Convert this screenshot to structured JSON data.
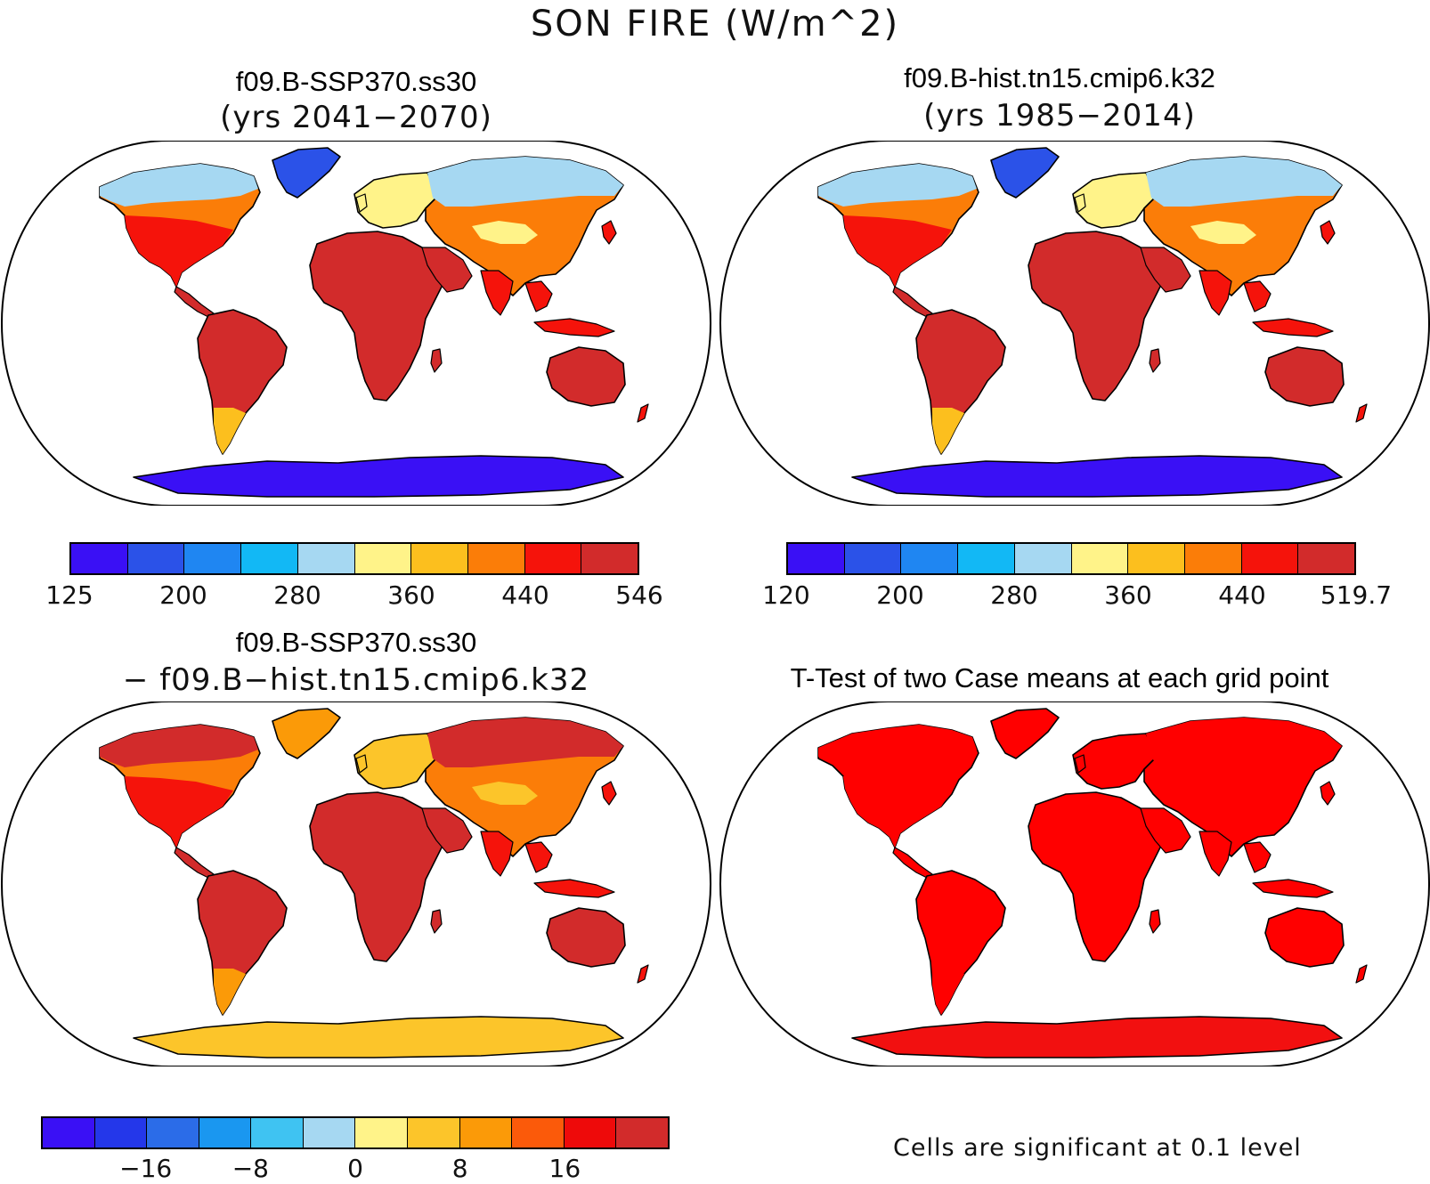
{
  "figure": {
    "title": "SON FIRE (W/m^2)"
  },
  "panels": [
    {
      "id": "future",
      "title_line1": "f09.B-SSP370.ss30",
      "title_line2": "(yrs 2041−2070)",
      "colorbar": {
        "colors": [
          "#3a10f5",
          "#2b52e8",
          "#1f86f2",
          "#12b8f5",
          "#a6d8f2",
          "#fff389",
          "#fcbf1e",
          "#fb7d08",
          "#f5130b",
          "#d22b2b"
        ],
        "tick_labels": [
          "125",
          "200",
          "280",
          "360",
          "440",
          "546"
        ]
      },
      "map_colors": {
        "land_main": "#d22b2b",
        "land_mid": "#f5130b",
        "land_warm": "#fb7d08",
        "land_cool": "#fcbf1e",
        "arctic": "#a6d8f2",
        "greenland": "#2b52e8",
        "antarctica": "#3a10f5",
        "pale": "#fff389"
      }
    },
    {
      "id": "historical",
      "title_line1": "f09.B-hist.tn15.cmip6.k32",
      "title_line2": "(yrs 1985−2014)",
      "colorbar": {
        "colors": [
          "#3a10f5",
          "#2b52e8",
          "#1f86f2",
          "#12b8f5",
          "#a6d8f2",
          "#fff389",
          "#fcbf1e",
          "#fb7d08",
          "#f5130b",
          "#d22b2b"
        ],
        "tick_labels": [
          "120",
          "200",
          "280",
          "360",
          "440",
          "519.7"
        ]
      },
      "map_colors": {
        "land_main": "#d22b2b",
        "land_mid": "#f5130b",
        "land_warm": "#fb7d08",
        "land_cool": "#fcbf1e",
        "arctic": "#a6d8f2",
        "greenland": "#2b52e8",
        "antarctica": "#3a10f5",
        "pale": "#fff389"
      }
    },
    {
      "id": "difference",
      "title_line1": "f09.B-SSP370.ss30",
      "title_line2": "− f09.B−hist.tn15.cmip6.k32",
      "colorbar": {
        "colors": [
          "#3a10f5",
          "#2437ea",
          "#2b6ce8",
          "#1a97f0",
          "#3fc3f2",
          "#a6d8f2",
          "#fff389",
          "#fcc52a",
          "#fb9a08",
          "#fb5a0a",
          "#ee0a0a",
          "#d22b2b"
        ],
        "tick_labels": [
          "−16",
          "−8",
          "0",
          "8",
          "16"
        ]
      },
      "map_colors": {
        "land_main": "#d22b2b",
        "land_mid": "#f5130b",
        "land_warm": "#fb7d08",
        "land_cool": "#fb9a08",
        "arctic": "#d22b2b",
        "greenland": "#fb9a08",
        "antarctica": "#fcc52a",
        "pale": "#fcc52a"
      }
    },
    {
      "id": "ttest",
      "title_line1": "T-Test of two Case means at each grid point",
      "note": "Cells are significant at 0.1 level",
      "map_colors": {
        "land_main": "#ff0000",
        "land_mid": "#ff0000",
        "land_warm": "#ff0000",
        "land_cool": "#ff0000",
        "arctic": "#ff0000",
        "greenland": "#ff0000",
        "antarctica": "#f21010",
        "pale": "#ff0000"
      }
    }
  ]
}
